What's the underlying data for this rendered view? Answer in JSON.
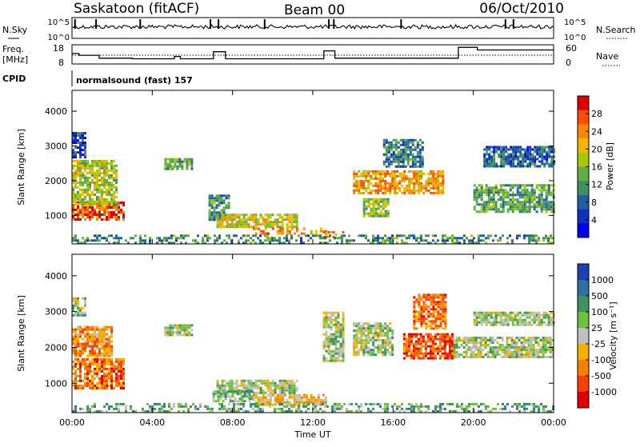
{
  "header": {
    "station": "Saskatoon (fitACF)",
    "beam": "Beam 00",
    "date": "06/Oct/2010"
  },
  "status": {
    "nsky_label": "N.Sky",
    "nsearch_label": "N.Search",
    "freq_label_1": "Freq.",
    "freq_label_2": "[MHz]",
    "nave_label": "Nave",
    "cpid_label": "CPID",
    "cpid_text": "normalsound (fast) 157",
    "noise_ticks_left": [
      "10^5",
      "10^0"
    ],
    "noise_ticks_right": [
      "10^5",
      "10^0"
    ],
    "freq_ticks": [
      "18",
      "8"
    ],
    "nave_ticks": [
      "60",
      "0"
    ],
    "freq_step_hours": [
      0,
      0.35,
      1.35,
      3.0,
      5.1,
      5.4,
      7.05,
      7.65,
      12.55,
      13.1,
      19.25,
      20.2,
      24
    ],
    "freq_step_level": [
      0.45,
      0.55,
      0.72,
      0.75,
      0.62,
      0.75,
      0.35,
      0.75,
      0.3,
      0.72,
      0.1,
      0.25,
      0.25
    ],
    "noise_spike_hours": [
      0.15,
      1.2,
      3.4,
      6.9,
      7.3,
      9.6,
      12.8,
      13.05,
      16.4,
      21.6,
      22.0
    ]
  },
  "chart_data": [
    {
      "type": "heatmap",
      "panel": "power",
      "ylabel": "Slant Range [km]",
      "ylim": [
        180,
        4600
      ],
      "yticks": [
        1000,
        2000,
        3000,
        4000
      ],
      "xticks": [
        "00:00",
        "04:00",
        "08:00",
        "12:00",
        "16:00",
        "20:00",
        "00:00"
      ],
      "colorbar": {
        "label": "Power [dB]",
        "ticks": [
          "28",
          "24",
          "20",
          "16",
          "12",
          "8",
          "4"
        ],
        "colors": [
          "#e00000",
          "#f85000",
          "#f88800",
          "#f0b800",
          "#a8c800",
          "#60b040",
          "#409060",
          "#2060a0",
          "#1030c0",
          "#0000f0"
        ]
      },
      "echo_regions": [
        {
          "t": [
            0.0,
            2.6
          ],
          "r": [
            850,
            1400
          ],
          "level": 0.85
        },
        {
          "t": [
            0.0,
            2.2
          ],
          "r": [
            1350,
            2600
          ],
          "level": 0.55
        },
        {
          "t": [
            0.0,
            0.6
          ],
          "r": [
            2700,
            3400
          ],
          "level": 0.2
        },
        {
          "t": [
            4.6,
            6.0
          ],
          "r": [
            2350,
            2650
          ],
          "level": 0.4
        },
        {
          "t": [
            6.8,
            7.8
          ],
          "r": [
            900,
            1600
          ],
          "level": 0.35
        },
        {
          "t": [
            7.2,
            11.2
          ],
          "r": [
            650,
            1050
          ],
          "level": 0.6
        },
        {
          "t": [
            9.0,
            12.6
          ],
          "r": [
            450,
            650
          ],
          "level": 0.75
        },
        {
          "t": [
            12.5,
            13.5
          ],
          "r": [
            350,
            550
          ],
          "level": 0.75
        },
        {
          "t": [
            14.0,
            18.5
          ],
          "r": [
            1650,
            2300
          ],
          "level": 0.7
        },
        {
          "t": [
            14.5,
            15.8
          ],
          "r": [
            1000,
            1500
          ],
          "level": 0.5
        },
        {
          "t": [
            15.5,
            17.5
          ],
          "r": [
            2400,
            3200
          ],
          "level": 0.3
        },
        {
          "t": [
            20.0,
            24.0
          ],
          "r": [
            1100,
            1900
          ],
          "level": 0.4
        },
        {
          "t": [
            20.5,
            24.0
          ],
          "r": [
            2400,
            3000
          ],
          "level": 0.25
        },
        {
          "t": [
            0.0,
            24.0
          ],
          "r": [
            200,
            450
          ],
          "level": 0.35
        }
      ]
    },
    {
      "type": "heatmap",
      "panel": "velocity",
      "ylabel": "Slant Range [km]",
      "ylim": [
        180,
        4600
      ],
      "yticks": [
        1000,
        2000,
        3000,
        4000
      ],
      "xticks": [
        "00:00",
        "04:00",
        "08:00",
        "12:00",
        "16:00",
        "20:00",
        "00:00"
      ],
      "xlabel": "Time UT",
      "colorbar": {
        "label": "Velocity [m s⁻¹]",
        "ticks": [
          "1000",
          "500",
          "100",
          "25",
          "-25",
          "-100",
          "-500",
          "-1000"
        ],
        "colors": [
          "#2040b0",
          "#3070a0",
          "#409060",
          "#70c040",
          "#c0c0c0",
          "#f8b000",
          "#f88000",
          "#f84000",
          "#e00000"
        ]
      },
      "echo_regions": [
        {
          "t": [
            0.0,
            2.6
          ],
          "r": [
            850,
            1700
          ],
          "level": 0.75
        },
        {
          "t": [
            0.0,
            2.0
          ],
          "r": [
            1750,
            2600
          ],
          "level": 0.7
        },
        {
          "t": [
            0.0,
            0.6
          ],
          "r": [
            2900,
            3400
          ],
          "level": 0.45
        },
        {
          "t": [
            4.6,
            6.0
          ],
          "r": [
            2350,
            2650
          ],
          "level": 0.45
        },
        {
          "t": [
            7.2,
            11.2
          ],
          "r": [
            750,
            1100
          ],
          "level": 0.45
        },
        {
          "t": [
            7.0,
            9.0
          ],
          "r": [
            500,
            800
          ],
          "level": 0.35
        },
        {
          "t": [
            9.0,
            12.6
          ],
          "r": [
            400,
            700
          ],
          "level": 0.6
        },
        {
          "t": [
            12.5,
            13.5
          ],
          "r": [
            1600,
            3000
          ],
          "level": 0.45
        },
        {
          "t": [
            14.0,
            16.0
          ],
          "r": [
            1800,
            2700
          ],
          "level": 0.45
        },
        {
          "t": [
            16.5,
            19.0
          ],
          "r": [
            1700,
            2400
          ],
          "level": 0.82
        },
        {
          "t": [
            17.0,
            18.6
          ],
          "r": [
            2500,
            3500
          ],
          "level": 0.75
        },
        {
          "t": [
            19.0,
            24.0
          ],
          "r": [
            1700,
            2300
          ],
          "level": 0.45
        },
        {
          "t": [
            20.0,
            24.0
          ],
          "r": [
            2600,
            3000
          ],
          "level": 0.45
        },
        {
          "t": [
            0.0,
            24.0
          ],
          "r": [
            200,
            450
          ],
          "level": 0.35
        }
      ]
    }
  ]
}
